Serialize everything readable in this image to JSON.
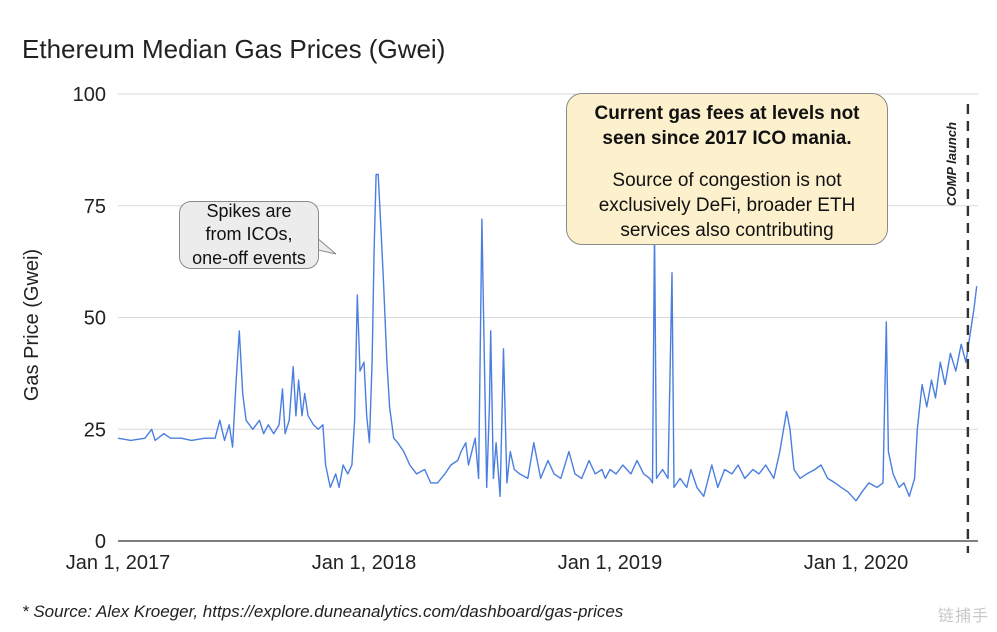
{
  "chart_data": {
    "type": "line",
    "title": "Ethereum Median Gas Prices (Gwei)",
    "ylabel": "Gas Price (Gwei)",
    "xlabel": "",
    "ylim": [
      0,
      100
    ],
    "yticks": [
      0,
      25,
      50,
      75,
      100
    ],
    "xlim": [
      "2017-01-01",
      "2020-06-30"
    ],
    "xticks": [
      {
        "value": "2017-01-01",
        "label": "Jan 1, 2017"
      },
      {
        "value": "2018-01-01",
        "label": "Jan 1, 2018"
      },
      {
        "value": "2019-01-01",
        "label": "Jan 1, 2019"
      },
      {
        "value": "2020-01-01",
        "label": "Jan 1, 2020"
      }
    ],
    "grid": true,
    "series": [
      {
        "color": "#4a7fe0",
        "points": [
          [
            "2017-01-01",
            23
          ],
          [
            "2017-01-20",
            22.5
          ],
          [
            "2017-02-10",
            23
          ],
          [
            "2017-02-20",
            25
          ],
          [
            "2017-02-25",
            22.5
          ],
          [
            "2017-03-10",
            24
          ],
          [
            "2017-03-20",
            23
          ],
          [
            "2017-04-05",
            23
          ],
          [
            "2017-04-20",
            22.5
          ],
          [
            "2017-05-10",
            23
          ],
          [
            "2017-05-25",
            23
          ],
          [
            "2017-06-01",
            27
          ],
          [
            "2017-06-08",
            22.5
          ],
          [
            "2017-06-15",
            26
          ],
          [
            "2017-06-20",
            21
          ],
          [
            "2017-06-25",
            35
          ],
          [
            "2017-06-30",
            47
          ],
          [
            "2017-07-05",
            33
          ],
          [
            "2017-07-10",
            27
          ],
          [
            "2017-07-20",
            25
          ],
          [
            "2017-07-30",
            27
          ],
          [
            "2017-08-05",
            24
          ],
          [
            "2017-08-12",
            26
          ],
          [
            "2017-08-20",
            24
          ],
          [
            "2017-08-28",
            26
          ],
          [
            "2017-09-02",
            34
          ],
          [
            "2017-09-06",
            24
          ],
          [
            "2017-09-12",
            27
          ],
          [
            "2017-09-18",
            39
          ],
          [
            "2017-09-22",
            28
          ],
          [
            "2017-09-26",
            36
          ],
          [
            "2017-10-01",
            28
          ],
          [
            "2017-10-05",
            33
          ],
          [
            "2017-10-10",
            28
          ],
          [
            "2017-10-18",
            26
          ],
          [
            "2017-10-25",
            25
          ],
          [
            "2017-11-01",
            26
          ],
          [
            "2017-11-05",
            17
          ],
          [
            "2017-11-12",
            12
          ],
          [
            "2017-11-20",
            15
          ],
          [
            "2017-11-25",
            12
          ],
          [
            "2017-12-01",
            17
          ],
          [
            "2017-12-08",
            15
          ],
          [
            "2017-12-14",
            17
          ],
          [
            "2017-12-18",
            27
          ],
          [
            "2017-12-22",
            55
          ],
          [
            "2017-12-26",
            38
          ],
          [
            "2018-01-01",
            40
          ],
          [
            "2018-01-05",
            28
          ],
          [
            "2018-01-09",
            22
          ],
          [
            "2018-01-13",
            40
          ],
          [
            "2018-01-16",
            65
          ],
          [
            "2018-01-19",
            82
          ],
          [
            "2018-01-22",
            82
          ],
          [
            "2018-01-26",
            70
          ],
          [
            "2018-01-30",
            58
          ],
          [
            "2018-02-04",
            40
          ],
          [
            "2018-02-08",
            30
          ],
          [
            "2018-02-14",
            23
          ],
          [
            "2018-02-20",
            22
          ],
          [
            "2018-03-01",
            20
          ],
          [
            "2018-03-10",
            17
          ],
          [
            "2018-03-20",
            15
          ],
          [
            "2018-04-01",
            16
          ],
          [
            "2018-04-10",
            13
          ],
          [
            "2018-04-20",
            13
          ],
          [
            "2018-05-01",
            15
          ],
          [
            "2018-05-10",
            17
          ],
          [
            "2018-05-20",
            18
          ],
          [
            "2018-05-25",
            20
          ],
          [
            "2018-06-01",
            22
          ],
          [
            "2018-06-05",
            17
          ],
          [
            "2018-06-10",
            20
          ],
          [
            "2018-06-15",
            23
          ],
          [
            "2018-06-20",
            14
          ],
          [
            "2018-06-25",
            72
          ],
          [
            "2018-06-28",
            45
          ],
          [
            "2018-07-02",
            12
          ],
          [
            "2018-07-06",
            30
          ],
          [
            "2018-07-08",
            47
          ],
          [
            "2018-07-12",
            14
          ],
          [
            "2018-07-16",
            22
          ],
          [
            "2018-07-22",
            10
          ],
          [
            "2018-07-27",
            43
          ],
          [
            "2018-08-01",
            13
          ],
          [
            "2018-08-06",
            20
          ],
          [
            "2018-08-12",
            16
          ],
          [
            "2018-08-20",
            15
          ],
          [
            "2018-09-01",
            14
          ],
          [
            "2018-09-10",
            22
          ],
          [
            "2018-09-20",
            14
          ],
          [
            "2018-10-01",
            18
          ],
          [
            "2018-10-10",
            15
          ],
          [
            "2018-10-20",
            14
          ],
          [
            "2018-11-01",
            20
          ],
          [
            "2018-11-10",
            15
          ],
          [
            "2018-11-20",
            14
          ],
          [
            "2018-12-01",
            18
          ],
          [
            "2018-12-10",
            15
          ],
          [
            "2018-12-20",
            16
          ],
          [
            "2018-12-25",
            14
          ],
          [
            "2019-01-01",
            16
          ],
          [
            "2019-01-10",
            15
          ],
          [
            "2019-01-20",
            17
          ],
          [
            "2019-02-01",
            15
          ],
          [
            "2019-02-10",
            18
          ],
          [
            "2019-02-20",
            15
          ],
          [
            "2019-03-01",
            14
          ],
          [
            "2019-03-05",
            13
          ],
          [
            "2019-03-08",
            70
          ],
          [
            "2019-03-11",
            14
          ],
          [
            "2019-03-20",
            16
          ],
          [
            "2019-03-28",
            14
          ],
          [
            "2019-04-03",
            60
          ],
          [
            "2019-04-06",
            12
          ],
          [
            "2019-04-15",
            14
          ],
          [
            "2019-04-25",
            12
          ],
          [
            "2019-05-01",
            16
          ],
          [
            "2019-05-10",
            12
          ],
          [
            "2019-05-20",
            10
          ],
          [
            "2019-06-01",
            17
          ],
          [
            "2019-06-10",
            12
          ],
          [
            "2019-06-20",
            16
          ],
          [
            "2019-07-01",
            15
          ],
          [
            "2019-07-10",
            17
          ],
          [
            "2019-07-20",
            14
          ],
          [
            "2019-08-01",
            16
          ],
          [
            "2019-08-10",
            15
          ],
          [
            "2019-08-20",
            17
          ],
          [
            "2019-09-01",
            14
          ],
          [
            "2019-09-10",
            20
          ],
          [
            "2019-09-20",
            29
          ],
          [
            "2019-09-25",
            25
          ],
          [
            "2019-10-01",
            16
          ],
          [
            "2019-10-10",
            14
          ],
          [
            "2019-10-20",
            15
          ],
          [
            "2019-11-01",
            16
          ],
          [
            "2019-11-10",
            17
          ],
          [
            "2019-11-20",
            14
          ],
          [
            "2019-12-01",
            13
          ],
          [
            "2019-12-10",
            12
          ],
          [
            "2019-12-20",
            11
          ],
          [
            "2020-01-01",
            9
          ],
          [
            "2020-01-10",
            11
          ],
          [
            "2020-01-20",
            13
          ],
          [
            "2020-02-01",
            12
          ],
          [
            "2020-02-10",
            13
          ],
          [
            "2020-02-15",
            49
          ],
          [
            "2020-02-18",
            20
          ],
          [
            "2020-02-25",
            15
          ],
          [
            "2020-03-05",
            12
          ],
          [
            "2020-03-12",
            13
          ],
          [
            "2020-03-20",
            10
          ],
          [
            "2020-03-28",
            14
          ],
          [
            "2020-04-01",
            25
          ],
          [
            "2020-04-08",
            35
          ],
          [
            "2020-04-15",
            30
          ],
          [
            "2020-04-22",
            36
          ],
          [
            "2020-04-28",
            32
          ],
          [
            "2020-05-05",
            40
          ],
          [
            "2020-05-12",
            35
          ],
          [
            "2020-05-20",
            42
          ],
          [
            "2020-05-28",
            38
          ],
          [
            "2020-06-05",
            44
          ],
          [
            "2020-06-12",
            40
          ],
          [
            "2020-06-18",
            46
          ],
          [
            "2020-06-24",
            52
          ],
          [
            "2020-06-28",
            57
          ]
        ]
      }
    ],
    "annotations": {
      "spikes_callout": [
        "Spikes are",
        "from ICOs,",
        "one-off events"
      ],
      "main_callout_bold": [
        "Current gas fees at levels not",
        "seen since 2017 ICO mania."
      ],
      "main_callout_body": [
        "Source of congestion is not",
        "exclusively DeFi, broader ETH",
        "services also contributing"
      ],
      "comp_launch": {
        "label": "COMP launch",
        "date": "2020-06-15"
      }
    }
  },
  "footer": {
    "source": "* Source: Alex Kroeger, https://explore.duneanalytics.com/dashboard/gas-prices"
  },
  "watermark": "链捕手"
}
